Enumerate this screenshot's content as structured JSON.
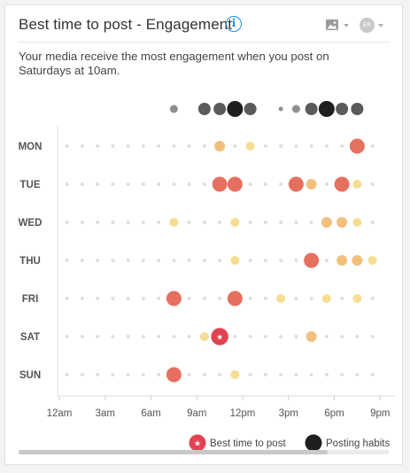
{
  "header": {
    "title": "Best time to post - Engagement",
    "info_icon": "info-icon",
    "image_menu_icon": "image-icon",
    "avatar_initials": "ER"
  },
  "description": "Your media receive the most engagement when you post on Saturdays at 10am.",
  "legend": {
    "best": "Best time to post",
    "habits": "Posting habits",
    "star": "★"
  },
  "colors": {
    "best": "#e57060",
    "good": "#f1c07e",
    "weak": "#f5dd92",
    "empty": "#dedede",
    "habit_light": "#8f8f8f",
    "habit_mid": "#5b5b5b",
    "habit_strong": "#1f1f1f",
    "best_marker": "#e04453",
    "info": "#1a8fe3"
  },
  "chart_data": {
    "type": "scatter",
    "x_tick_labels": [
      "12am",
      "3am",
      "6am",
      "9am",
      "12pm",
      "3pm",
      "6pm",
      "9pm"
    ],
    "x_tick_hours": [
      0,
      3,
      6,
      9,
      12,
      15,
      18,
      21
    ],
    "xlim": [
      0,
      21
    ],
    "days": [
      "MON",
      "TUE",
      "WED",
      "THU",
      "FRI",
      "SAT",
      "SUN"
    ],
    "best_time": {
      "day": "SAT",
      "hour": 10
    },
    "engagement": [
      [
        {
          "hour": 10.5,
          "level": 2
        },
        {
          "hour": 12.5,
          "level": 1
        },
        {
          "hour": 19.5,
          "level": 3
        }
      ],
      [
        {
          "hour": 10.5,
          "level": 3
        },
        {
          "hour": 11.5,
          "level": 3
        },
        {
          "hour": 15.5,
          "level": 3
        },
        {
          "hour": 16.5,
          "level": 2
        },
        {
          "hour": 18.5,
          "level": 3
        },
        {
          "hour": 19.5,
          "level": 1
        }
      ],
      [
        {
          "hour": 7.5,
          "level": 1
        },
        {
          "hour": 11.5,
          "level": 1
        },
        {
          "hour": 17.5,
          "level": 2
        },
        {
          "hour": 18.5,
          "level": 2
        },
        {
          "hour": 19.5,
          "level": 1
        }
      ],
      [
        {
          "hour": 11.5,
          "level": 1
        },
        {
          "hour": 16.5,
          "level": 3
        },
        {
          "hour": 18.5,
          "level": 2
        },
        {
          "hour": 19.5,
          "level": 2
        },
        {
          "hour": 20.5,
          "level": 1
        }
      ],
      [
        {
          "hour": 7.5,
          "level": 3
        },
        {
          "hour": 11.5,
          "level": 3
        },
        {
          "hour": 14.5,
          "level": 1
        },
        {
          "hour": 17.5,
          "level": 1
        },
        {
          "hour": 19.5,
          "level": 1
        }
      ],
      [
        {
          "hour": 9.5,
          "level": 1
        },
        {
          "hour": 10.5,
          "level": 4
        },
        {
          "hour": 16.5,
          "level": 2
        }
      ],
      [
        {
          "hour": 7.5,
          "level": 3
        },
        {
          "hour": 11.5,
          "level": 1
        }
      ]
    ],
    "posting_habits": [
      {
        "hour": 7.5,
        "level": 1
      },
      {
        "hour": 9.5,
        "level": 2
      },
      {
        "hour": 10.5,
        "level": 2
      },
      {
        "hour": 11.5,
        "level": 3
      },
      {
        "hour": 12.5,
        "level": 2
      },
      {
        "hour": 14.5,
        "level": 0
      },
      {
        "hour": 15.5,
        "level": 1
      },
      {
        "hour": 16.5,
        "level": 2
      },
      {
        "hour": 17.5,
        "level": 3
      },
      {
        "hour": 18.5,
        "level": 2
      },
      {
        "hour": 19.5,
        "level": 2
      }
    ],
    "scroll_fraction": 0.835
  }
}
